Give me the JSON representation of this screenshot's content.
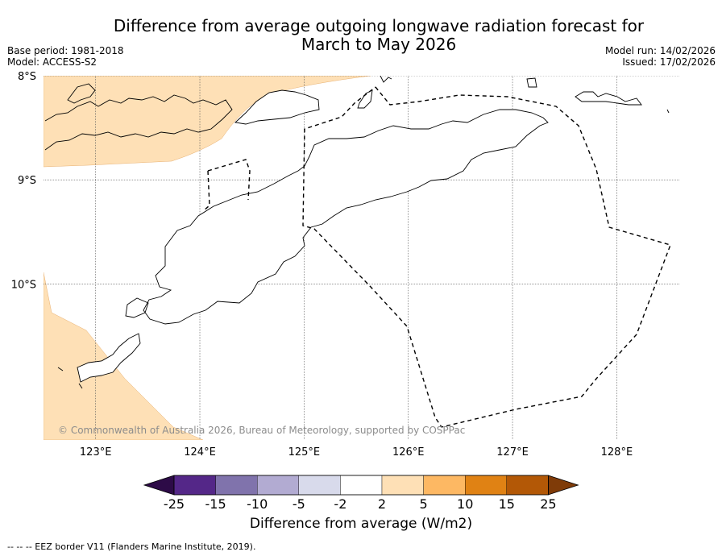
{
  "header": {
    "title_line1": "Difference from average outgoing longwave radiation forecast for",
    "title_line2": "March to May 2026",
    "base_period": "Base period: 1981-2018",
    "model": "Model: ACCESS-S2",
    "model_run": "Model run: 14/02/2026",
    "issued": "Issued: 17/02/2026"
  },
  "map": {
    "copyright": "© Commonwealth of Australia 2026, Bureau of Meteorology, supported by COSPPac",
    "footer_note": "--  --  -- EEZ border V11 (Flanders Marine Institute, 2019).",
    "land_color": "#ffffff",
    "positive_anomaly_color": "#fee0b6"
  },
  "chart_data": {
    "type": "heatmap",
    "title": "Difference from average outgoing longwave radiation forecast for March to May 2026",
    "lon_range": [
      122.5,
      128.6
    ],
    "lat_range": [
      -11.5,
      -8.0
    ],
    "x_ticks": [
      {
        "value": 123,
        "label": "123°E"
      },
      {
        "value": 124,
        "label": "124°E"
      },
      {
        "value": 125,
        "label": "125°E"
      },
      {
        "value": 126,
        "label": "126°E"
      },
      {
        "value": 127,
        "label": "127°E"
      },
      {
        "value": 128,
        "label": "128°E"
      }
    ],
    "y_ticks": [
      {
        "value": -8,
        "label": "8°S"
      },
      {
        "value": -9,
        "label": "9°S"
      },
      {
        "value": -10,
        "label": "10°S"
      }
    ],
    "grid": true,
    "shaded_regions": [
      {
        "category": "2 to 5",
        "location": "north-west corner"
      },
      {
        "category": "2 to 5",
        "location": "south-west corner"
      }
    ],
    "colorbar": {
      "label": "Difference from average (W/m2)",
      "ticks": [
        "-25",
        "-15",
        "-10",
        "-5",
        "-2",
        "2",
        "5",
        "10",
        "15",
        "25"
      ],
      "colors": [
        "#2d0b47",
        "#542788",
        "#8073ac",
        "#b2abd2",
        "#d8daeb",
        "#ffffff",
        "#fee0b6",
        "#fdb863",
        "#e08214",
        "#b35806",
        "#7f3b08"
      ],
      "extend": "both"
    }
  }
}
